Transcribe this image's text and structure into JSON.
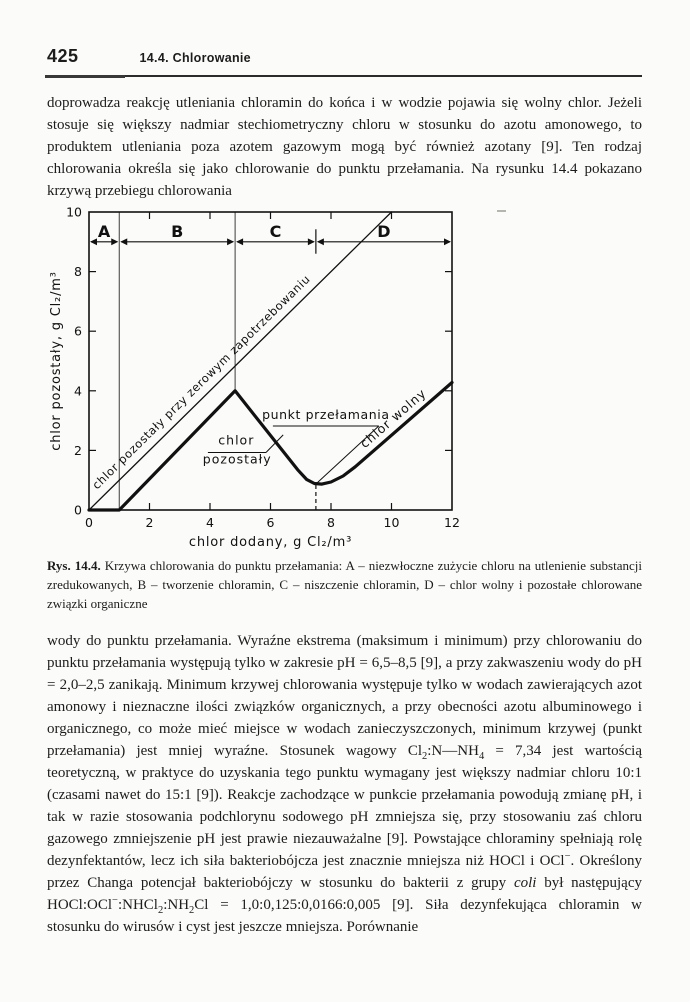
{
  "page": {
    "number": "425",
    "section_title": "14.4. Chlorowanie"
  },
  "paragraphs": {
    "intro": "doprowadza reakcję utleniania chloramin do końca i w wodzie pojawia się wolny chlor. Jeżeli stosuje się większy nadmiar stechiometryczny chloru w stosunku do azotu amonowego, to produktem utleniania poza azotem gazowym mogą być również azotany [9]. Ten rodzaj chlorowania określa się jako chlorowanie do punktu przełamania. Na rysunku 14.4 pokazano krzywą przebiegu chlorowania",
    "body": "wody do punktu przełamania. Wyraźne ekstrema (maksimum i minimum) przy chlorowaniu do punktu przełamania występują tylko w zakresie pH = 6,5–8,5 [9], a przy zakwaszeniu wody do pH = 2,0–2,5 zanikają. Minimum krzywej chlorowania występuje tylko w wodach zawierających azot amonowy i nieznaczne ilości związków organicznych, a przy obecności azotu albuminowego i organicznego, co może mieć miejsce w wodach zanieczyszczonych, minimum krzywej (punkt przełamania) jest mniej wyraźne. Stosunek wagowy Cl<sub>2</sub>:N—NH<sub>4</sub> = 7,34 jest wartością teoretyczną, w praktyce do uzyskania tego punktu wymagany jest większy nadmiar chloru 10:1 (czasami nawet do 15:1 [9]). Reakcje zachodzące w punkcie przełamania powodują zmianę pH, i tak w razie stosowania podchlorynu sodowego pH zmniejsza się, przy stosowaniu zaś chloru gazowego zmniejszenie pH jest prawie niezauważalne [9]. Powstające chloraminy spełniają rolę dezynfektantów, lecz ich siła bakteriobójcza jest znacznie mniejsza niż HOCl i OCl<sup>−</sup>. Określony przez Changa potencjał bakteriobójczy w stosunku do bakterii z grupy <i>coli</i> był następujący HOCl:OCl<sup>−</sup>:NHCl<sub>2</sub>:NH<sub>2</sub>Cl = 1,0:0,125:0,0166:0,005 [9]. Siła dezynfekująca chloramin w stosunku do wirusów i cyst jest jeszcze mniejsza. Porównanie"
  },
  "figure": {
    "caption_label": "Rys. 14.4.",
    "caption_text": " Krzywa chlorowania do punktu przełamania: A – niezwłoczne zużycie chloru na utlenienie substancji zredukowanych, B – tworzenie chloramin, C – niszczenie chloramin, D – chlor wolny i pozostałe chlorowane związki organiczne"
  },
  "chart_data": {
    "type": "line",
    "title": "",
    "xlabel": "chlor dodany, g Cl₂/m³",
    "ylabel": "chlor pozostały, g Cl₂/m³",
    "xlim": [
      0,
      12
    ],
    "ylim": [
      0,
      10
    ],
    "xticks": [
      0,
      2,
      4,
      6,
      8,
      10,
      12
    ],
    "yticks": [
      0,
      2,
      4,
      6,
      8,
      10
    ],
    "grid": false,
    "line_color": "#111111",
    "series": [
      {
        "name": "chlor pozostały",
        "style": "thick",
        "points": [
          [
            0,
            0
          ],
          [
            1,
            0
          ],
          [
            4.83,
            4.0
          ],
          [
            6.9,
            1.35
          ],
          [
            7.2,
            1.02
          ],
          [
            7.45,
            0.89
          ],
          [
            7.7,
            0.87
          ],
          [
            8.0,
            0.94
          ],
          [
            8.4,
            1.14
          ],
          [
            8.8,
            1.45
          ],
          [
            12,
            4.28
          ]
        ]
      },
      {
        "name": "chlor pozostały przy zerowym zapotrzebowaniu",
        "style": "thin",
        "points": [
          [
            0,
            0
          ],
          [
            10,
            10
          ]
        ]
      }
    ],
    "breakpoint": {
      "x": 7.5,
      "y": 0.88,
      "label": "punkt przełamania"
    },
    "zone_axis_y": 9,
    "zones": [
      {
        "label": "A",
        "from": 0,
        "to": 1
      },
      {
        "label": "B",
        "from": 1,
        "to": 4.83
      },
      {
        "label": "C",
        "from": 4.83,
        "to": 7.5
      },
      {
        "label": "D",
        "from": 7.5,
        "to": 12
      }
    ],
    "boundary_lines": [
      {
        "x": 1,
        "y1": 0,
        "y2": 10
      },
      {
        "x": 4.83,
        "y1": 3.98,
        "y2": 10
      }
    ],
    "cd_tick": {
      "x": 7.5,
      "y1": 8.6,
      "y2": 9.42
    },
    "dashed_line": {
      "pts": [
        [
          7.5,
          0
        ],
        [
          7.5,
          0.87
        ]
      ]
    },
    "lines": [
      {
        "pts": [
          [
            3.93,
            1.93
          ],
          [
            5.85,
            1.93
          ]
        ]
      },
      {
        "pts": [
          [
            5.85,
            1.93
          ],
          [
            6.42,
            2.52
          ]
        ]
      },
      {
        "pts": [
          [
            6.08,
            2.82
          ],
          [
            9.58,
            2.82
          ]
        ]
      },
      {
        "pts": [
          [
            9.58,
            2.82
          ],
          [
            7.55,
            0.92
          ]
        ]
      }
    ],
    "labels": [
      {
        "text": "chlor pozostały przy zerowym zapotrzebowaniu",
        "x": 3.8,
        "y": 4.2,
        "rotate": -44.5,
        "size": 11.5,
        "spacing": 0.6
      },
      {
        "text": "chlor wolny",
        "x": 10.15,
        "y": 2.97,
        "rotate": -41,
        "size": 12.5,
        "spacing": 1
      },
      {
        "text": "chlor",
        "x": 4.87,
        "y": 2.2,
        "size": 12.5,
        "spacing": 1
      },
      {
        "text": "pozostały",
        "x": 4.9,
        "y": 1.56,
        "size": 12.5,
        "spacing": 1
      },
      {
        "text": "punkt przełamania",
        "x": 7.83,
        "y": 3.06,
        "size": 12.5,
        "spacing": 0.6
      }
    ]
  }
}
